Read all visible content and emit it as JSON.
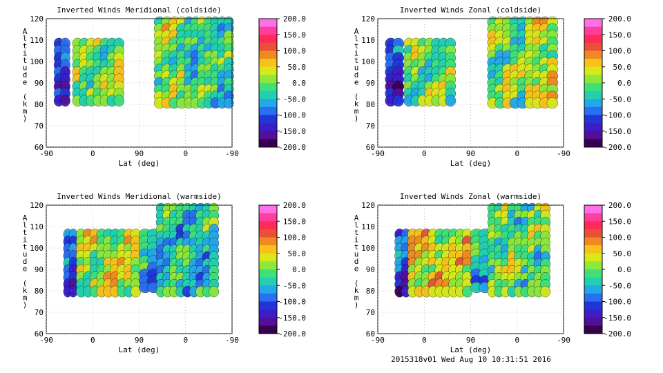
{
  "footer_text": "2015318v01 Wed Aug 10 10:31:51 2016",
  "colorbar": {
    "labels": [
      "200.0",
      "150.0",
      "100.0",
      "50.0",
      "0.0",
      "-50.0",
      "-100.0",
      "-150.0",
      "-200.0"
    ],
    "colors": [
      "#ff6fe8",
      "#ff3fa0",
      "#ff2a55",
      "#e8503a",
      "#f08a20",
      "#f8c21a",
      "#d9e81a",
      "#8ee83a",
      "#3fe07a",
      "#22d0b0",
      "#23a8e8",
      "#2a6ff0",
      "#2236d8",
      "#3b1ec8",
      "#52109a",
      "#3a0050"
    ]
  },
  "chart_data": [
    {
      "type": "heatmap",
      "title": "Inverted Winds Meridional (coldside)",
      "xlabel": "Lat (deg)",
      "ylabel": "Altitude (km)",
      "xticks": [
        "-90",
        "0",
        "90",
        "0",
        "-90"
      ],
      "yticks": [
        "60",
        "70",
        "80",
        "90",
        "100",
        "110",
        "120"
      ],
      "ylim": [
        60,
        120
      ],
      "colorbar_range": [
        -200,
        200
      ],
      "grid": true
    },
    {
      "type": "heatmap",
      "title": "Inverted Winds Zonal (coldside)",
      "xlabel": "Lat (deg)",
      "ylabel": "Altitude (km)",
      "xticks": [
        "-90",
        "0",
        "90",
        "0",
        "-90"
      ],
      "yticks": [
        "60",
        "70",
        "80",
        "90",
        "100",
        "110",
        "120"
      ],
      "ylim": [
        60,
        120
      ],
      "colorbar_range": [
        -200,
        200
      ],
      "grid": true
    },
    {
      "type": "heatmap",
      "title": "Inverted Winds Meridional (warmside)",
      "xlabel": "Lat (deg)",
      "ylabel": "Altitude (km)",
      "xticks": [
        "-90",
        "0",
        "90",
        "0",
        "-90"
      ],
      "yticks": [
        "60",
        "70",
        "80",
        "90",
        "100",
        "110",
        "120"
      ],
      "ylim": [
        60,
        120
      ],
      "colorbar_range": [
        -200,
        200
      ],
      "grid": true
    },
    {
      "type": "heatmap",
      "title": "Inverted Winds Zonal (warmside)",
      "xlabel": "Lat (deg)",
      "ylabel": "Altitude (km)",
      "xticks": [
        "-90",
        "0",
        "90",
        "0",
        "-90"
      ],
      "yticks": [
        "60",
        "70",
        "80",
        "90",
        "100",
        "110",
        "120"
      ],
      "ylim": [
        60,
        120
      ],
      "colorbar_range": [
        -200,
        200
      ],
      "grid": true
    }
  ]
}
